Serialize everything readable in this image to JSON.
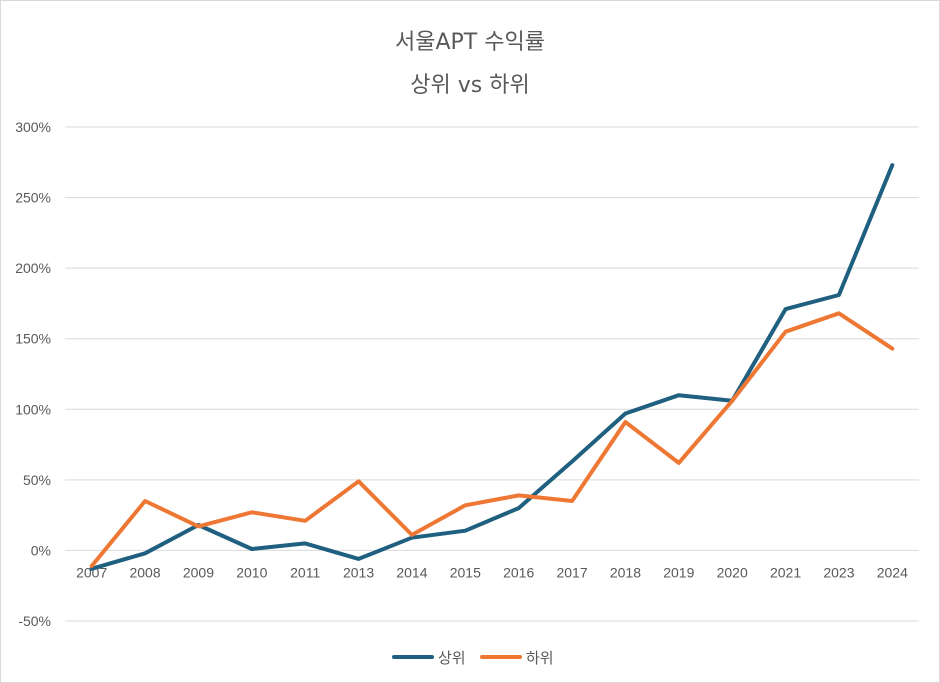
{
  "chart_data": {
    "type": "line",
    "title": "서울APT 수익률",
    "subtitle": "상위 vs 하위",
    "xlabel": "",
    "ylabel": "",
    "categories": [
      "2007",
      "2008",
      "2009",
      "2010",
      "2011",
      "2013",
      "2014",
      "2015",
      "2016",
      "2017",
      "2018",
      "2019",
      "2020",
      "2021",
      "2023",
      "2024"
    ],
    "ylim": [
      -50,
      300
    ],
    "yticks": [
      -50,
      0,
      50,
      100,
      150,
      200,
      250,
      300
    ],
    "ytick_labels": [
      "-50%",
      "0%",
      "50%",
      "100%",
      "150%",
      "200%",
      "250%",
      "300%"
    ],
    "grid": true,
    "legend_position": "bottom",
    "series": [
      {
        "name": "상위",
        "color": "#1f5f7f",
        "values": [
          -13,
          -2,
          18,
          1,
          5,
          -6,
          9,
          14,
          30,
          63,
          97,
          110,
          106,
          171,
          181,
          273
        ]
      },
      {
        "name": "하위",
        "color": "#ee7733",
        "values": [
          -11,
          35,
          17,
          27,
          21,
          49,
          11,
          32,
          39,
          35,
          91,
          62,
          106,
          155,
          168,
          143
        ]
      }
    ]
  }
}
